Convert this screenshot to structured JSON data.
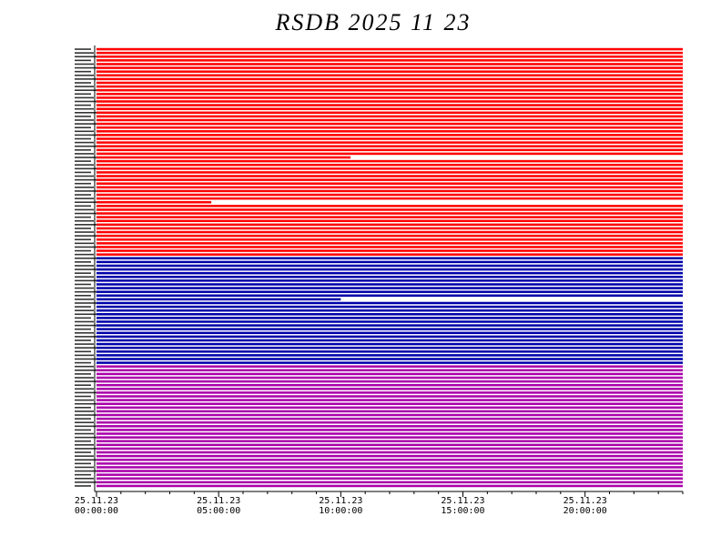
{
  "title": "RSDB  2025  11  23",
  "chart_data": {
    "type": "timeline",
    "title": "RSDB  2025  11  23",
    "x_range_hours": [
      0,
      24
    ],
    "x_ticks": [
      {
        "hour": 0,
        "date": "25.11.23",
        "time": "00:00:00"
      },
      {
        "hour": 5,
        "date": "25.11.23",
        "time": "05:00:00"
      },
      {
        "hour": 10,
        "date": "25.11.23",
        "time": "10:00:00"
      },
      {
        "hour": 15,
        "date": "25.11.23",
        "time": "15:00:00"
      },
      {
        "hour": 20,
        "date": "25.11.23",
        "time": "20:00:00"
      }
    ],
    "groups": [
      {
        "color": "#ff0000",
        "rows": 56,
        "gaps": [
          {
            "row": 29,
            "from_hour": 10.4,
            "to_hour": 24
          },
          {
            "row": 41,
            "from_hour": 4.7,
            "to_hour": 24
          }
        ]
      },
      {
        "color": "#0000aa",
        "rows": 29,
        "gaps": [
          {
            "row": 11,
            "from_hour": 10.0,
            "to_hour": 24
          }
        ]
      },
      {
        "color": "#aa00aa",
        "rows": 33,
        "gaps": []
      }
    ]
  }
}
